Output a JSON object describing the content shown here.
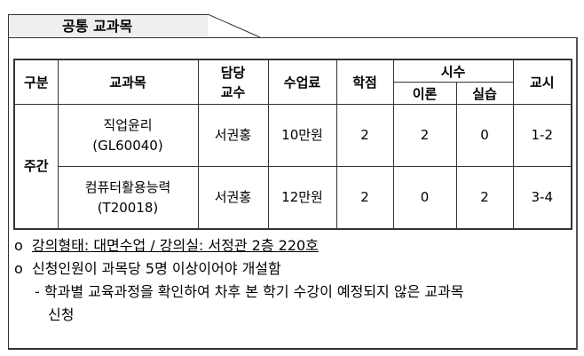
{
  "section_title": "공통 교과목",
  "table": {
    "headers": {
      "category": "구분",
      "subject": "교과목",
      "professor_l1": "담당",
      "professor_l2": "교수",
      "fee": "수업료",
      "credits": "학점",
      "hours": "시수",
      "theory": "이론",
      "practice": "실습",
      "period": "교시"
    },
    "category": "주간",
    "rows": [
      {
        "name": "직업윤리",
        "code": "(GL60040)",
        "professor": "서권홍",
        "fee": "10만원",
        "credits": "2",
        "theory": "2",
        "practice": "0",
        "period": "1-2"
      },
      {
        "name": "컴퓨터활용능력",
        "code": "(T20018)",
        "professor": "서권홍",
        "fee": "12만원",
        "credits": "2",
        "theory": "0",
        "practice": "2",
        "period": "3-4"
      }
    ]
  },
  "notes": {
    "bullet": "o",
    "line1": "강의형태: 대면수업 / 강의실: 서정관 2층 220호",
    "line2": "신청인원이 과목당 5명 이상이어야 개설함",
    "sub_dash": "-",
    "sub1": "학과별 교육과정을 확인하여 차후 본 학기 수강이 예정되지 않은 교과목",
    "sub2": "신청"
  }
}
